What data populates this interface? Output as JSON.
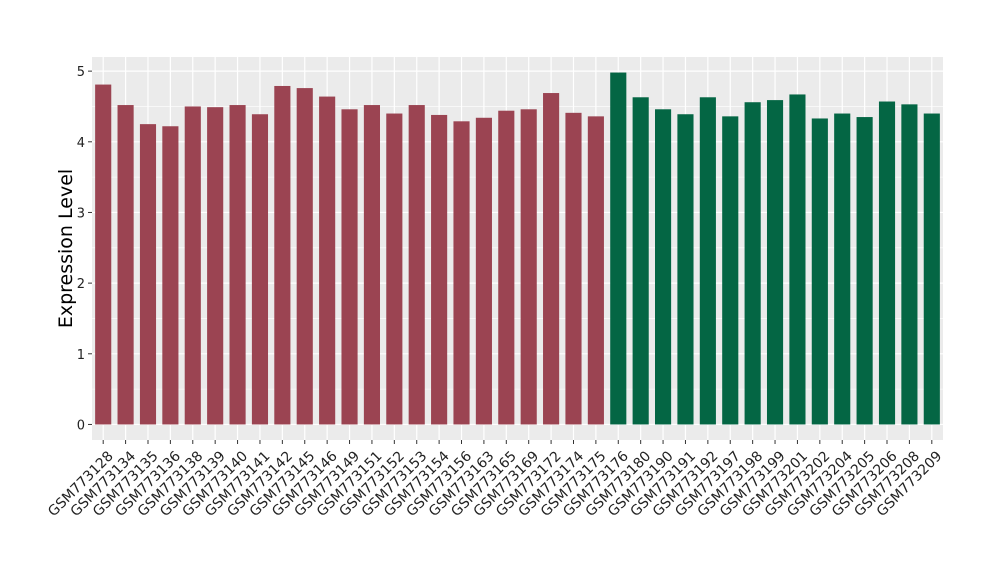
{
  "chart_data": {
    "type": "bar",
    "title": "",
    "xlabel": "",
    "ylabel": "Expression Level",
    "ylim": [
      -0.22,
      5.2
    ],
    "yticks": [
      0,
      1,
      2,
      3,
      4,
      5
    ],
    "grid": true,
    "colors": {
      "group1": "#9B4452",
      "group2": "#046644",
      "panel": "#EBEBEB",
      "grid": "#FFFFFF"
    },
    "categories": [
      "GSM773128",
      "GSM773134",
      "GSM773135",
      "GSM773136",
      "GSM773138",
      "GSM773139",
      "GSM773140",
      "GSM773141",
      "GSM773142",
      "GSM773145",
      "GSM773146",
      "GSM773149",
      "GSM773151",
      "GSM773152",
      "GSM773153",
      "GSM773154",
      "GSM773156",
      "GSM773163",
      "GSM773165",
      "GSM773169",
      "GSM773172",
      "GSM773174",
      "GSM773175",
      "GSM773176",
      "GSM773180",
      "GSM773190",
      "GSM773191",
      "GSM773192",
      "GSM773197",
      "GSM773198",
      "GSM773199",
      "GSM773201",
      "GSM773202",
      "GSM773204",
      "GSM773205",
      "GSM773206",
      "GSM773208",
      "GSM773209"
    ],
    "values": [
      4.81,
      4.52,
      4.25,
      4.22,
      4.5,
      4.49,
      4.52,
      4.39,
      4.79,
      4.76,
      4.64,
      4.46,
      4.52,
      4.4,
      4.52,
      4.38,
      4.29,
      4.34,
      4.44,
      4.46,
      4.69,
      4.41,
      4.36,
      4.98,
      4.63,
      4.46,
      4.39,
      4.63,
      4.36,
      4.56,
      4.59,
      4.67,
      4.33,
      4.4,
      4.35,
      4.57,
      4.53,
      4.4
    ],
    "groups": [
      1,
      1,
      1,
      1,
      1,
      1,
      1,
      1,
      1,
      1,
      1,
      1,
      1,
      1,
      1,
      1,
      1,
      1,
      1,
      1,
      1,
      1,
      1,
      2,
      2,
      2,
      2,
      2,
      2,
      2,
      2,
      2,
      2,
      2,
      2,
      2,
      2,
      2
    ]
  }
}
